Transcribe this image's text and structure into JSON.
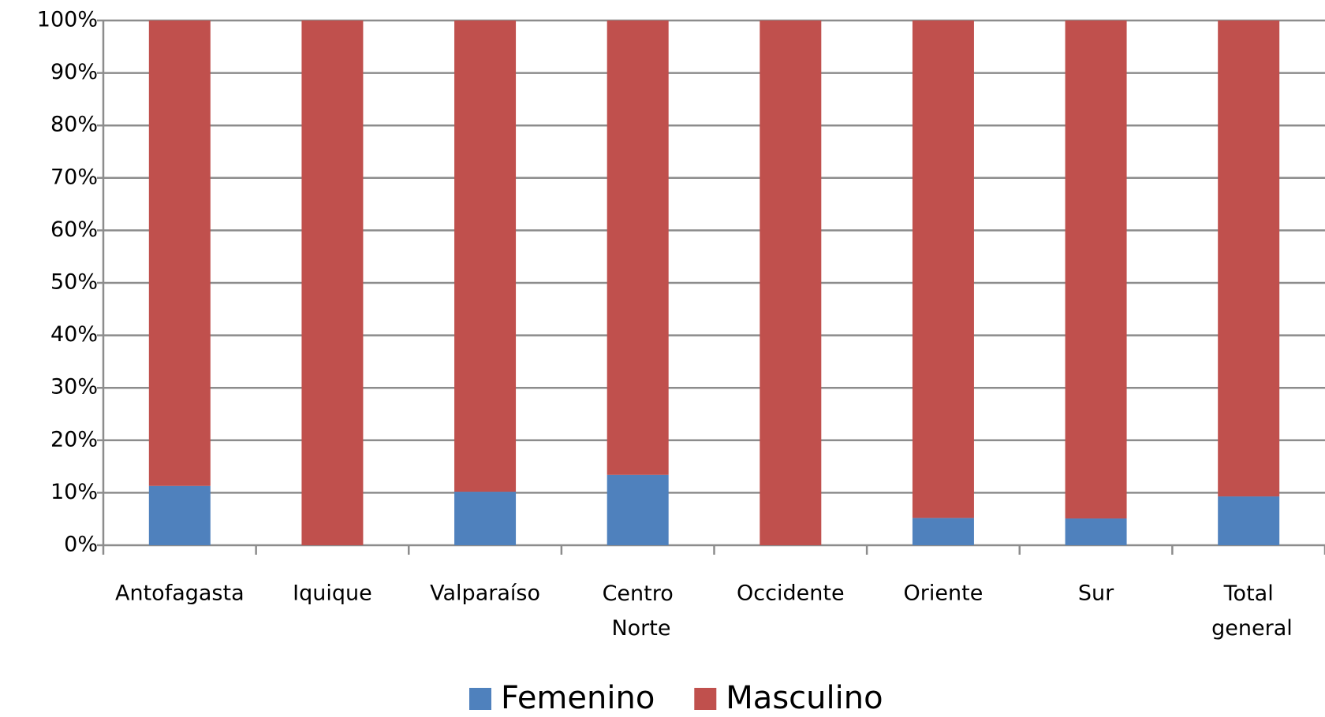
{
  "chart_data": {
    "type": "stacked_bar",
    "categories": [
      "Antofagasta",
      "Iquique",
      "Valparaíso",
      "Centro Norte",
      "Occidente",
      "Oriente",
      "Sur",
      "Total general"
    ],
    "series": [
      {
        "name": "Femenino",
        "color": "#4f81bd",
        "values": [
          11.3,
          0,
          10.2,
          13.4,
          0,
          5.2,
          5.1,
          9.3
        ]
      },
      {
        "name": "Masculino",
        "color": "#c0504d",
        "values": [
          88.7,
          100,
          89.8,
          86.6,
          100,
          94.8,
          94.9,
          90.7
        ]
      }
    ],
    "ylim": [
      0,
      100
    ],
    "yticks": [
      {
        "value": 0,
        "label": "0%"
      },
      {
        "value": 10,
        "label": "10%"
      },
      {
        "value": 20,
        "label": "20%"
      },
      {
        "value": 30,
        "label": "30%"
      },
      {
        "value": 40,
        "label": "40%"
      },
      {
        "value": 50,
        "label": "50%"
      },
      {
        "value": 60,
        "label": "60%"
      },
      {
        "value": 70,
        "label": "70%"
      },
      {
        "value": 80,
        "label": "80%"
      },
      {
        "value": 90,
        "label": "90%"
      },
      {
        "value": 100,
        "label": "100%"
      }
    ],
    "grid": true,
    "legend": "bottom"
  }
}
